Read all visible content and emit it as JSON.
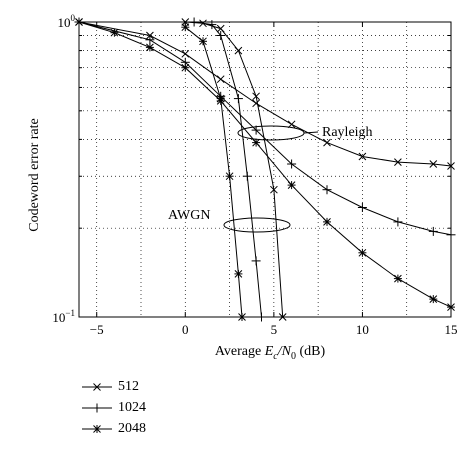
{
  "chart_data": {
    "type": "line",
    "ylabel": "Codeword error rate",
    "xlabel_parts": [
      "Average ",
      "E",
      "c",
      "/N",
      "0",
      " (dB)"
    ],
    "xlim": [
      -6,
      15
    ],
    "ylim": [
      0.1,
      1
    ],
    "yscale": "log",
    "grid": "dotted",
    "xticks": [
      -5,
      0,
      5,
      10,
      15
    ],
    "xtick_labels": [
      "−5",
      "0",
      "5",
      "10",
      "15"
    ],
    "yticks": [
      {
        "value": 1,
        "base": "10",
        "exp": "0"
      },
      {
        "value": 0.1,
        "base": "10",
        "exp": "−1"
      }
    ],
    "annotations": [
      "Rayleigh",
      "AWGN"
    ],
    "legend": [
      {
        "name": "512",
        "marker": "x"
      },
      {
        "name": "1024",
        "marker": "plus"
      },
      {
        "name": "2048",
        "marker": "star"
      }
    ],
    "series": [
      {
        "name": "512",
        "channel": "Rayleigh",
        "marker": "x",
        "x": [
          -6,
          -2,
          0,
          2,
          4,
          6,
          8,
          10,
          12,
          14,
          15
        ],
        "y": [
          1.0,
          0.9,
          0.78,
          0.64,
          0.53,
          0.45,
          0.39,
          0.35,
          0.335,
          0.33,
          0.325
        ]
      },
      {
        "name": "1024",
        "channel": "Rayleigh",
        "marker": "plus",
        "x": [
          -6,
          -2,
          0,
          2,
          4,
          6,
          8,
          10,
          12,
          14,
          15
        ],
        "y": [
          1.0,
          0.87,
          0.73,
          0.56,
          0.43,
          0.33,
          0.27,
          0.235,
          0.21,
          0.195,
          0.19
        ]
      },
      {
        "name": "2048",
        "channel": "Rayleigh",
        "marker": "star",
        "x": [
          -6,
          -4,
          -2,
          0,
          2,
          4,
          6,
          8,
          10,
          12,
          14,
          15
        ],
        "y": [
          1.0,
          0.92,
          0.82,
          0.7,
          0.54,
          0.39,
          0.28,
          0.21,
          0.165,
          0.135,
          0.115,
          0.108
        ]
      },
      {
        "name": "512",
        "channel": "AWGN",
        "marker": "x",
        "x": [
          0,
          1,
          2,
          3,
          4,
          5,
          5.5
        ],
        "y": [
          1.0,
          0.99,
          0.95,
          0.8,
          0.56,
          0.27,
          0.1
        ]
      },
      {
        "name": "1024",
        "channel": "AWGN",
        "marker": "plus",
        "x": [
          0.5,
          1.5,
          2,
          3,
          3.5,
          4,
          4.3
        ],
        "y": [
          1.0,
          0.98,
          0.9,
          0.55,
          0.3,
          0.155,
          0.1
        ]
      },
      {
        "name": "2048",
        "channel": "AWGN",
        "marker": "star",
        "x": [
          0,
          1,
          2,
          2.5,
          3,
          3.2
        ],
        "y": [
          0.96,
          0.86,
          0.55,
          0.3,
          0.14,
          0.1
        ]
      }
    ]
  }
}
